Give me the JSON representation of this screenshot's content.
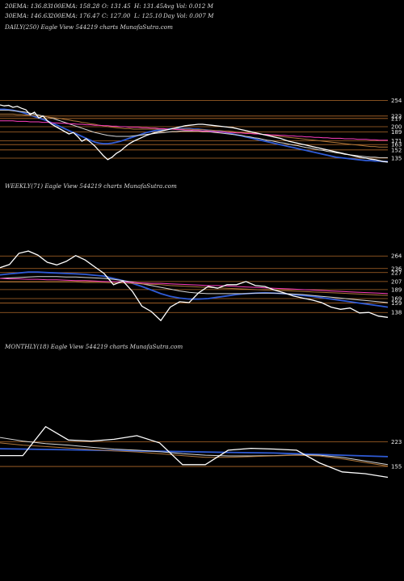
{
  "header": {
    "row1": [
      "20EMA: 136.83",
      "100EMA: 158.28",
      "O: 131.45",
      "H: 131.45",
      "Avg Vol: 0.012  M"
    ],
    "row2": [
      "30EMA: 146.63",
      "200EMA: 176.47",
      "C: 127.00",
      "L: 125.10",
      "Day Vol: 0.007 M"
    ]
  },
  "chart_data": [
    {
      "type": "line",
      "title": "DAILY(250) Eagle  View  544219 charts MunafaSutra.com",
      "y_ticks": [
        "254",
        "222",
        "217",
        "200",
        "189",
        "171",
        "163",
        "152",
        "135"
      ],
      "ylim": [
        115,
        265
      ],
      "price": [
        245,
        243,
        244,
        240,
        242,
        238,
        235,
        225,
        230,
        218,
        222,
        212,
        205,
        200,
        195,
        190,
        185,
        188,
        180,
        170,
        175,
        168,
        160,
        150,
        140,
        132,
        137,
        145,
        150,
        158,
        165,
        170,
        174,
        178,
        182,
        185,
        188,
        190,
        192,
        194,
        196,
        198,
        200,
        202,
        203,
        204,
        205,
        205,
        204,
        203,
        202,
        201,
        200,
        199,
        198,
        196,
        194,
        192,
        190,
        188,
        186,
        184,
        182,
        180,
        178,
        176,
        173,
        170,
        168,
        166,
        164,
        162,
        160,
        158,
        156,
        154,
        152,
        150,
        148,
        146,
        144,
        142,
        140,
        138,
        136,
        135,
        133,
        132,
        130,
        128,
        127
      ],
      "series": [
        {
          "values": [
            236,
            236,
            235,
            234,
            232,
            230,
            227,
            224,
            221,
            218,
            215,
            212,
            208,
            204,
            200,
            196,
            192,
            188,
            184,
            180,
            176,
            172,
            168,
            166,
            165,
            165,
            166,
            168,
            170,
            173,
            176,
            179,
            182,
            185,
            188,
            190,
            192,
            193,
            194,
            195,
            196,
            196,
            196,
            196,
            196,
            195,
            195,
            194,
            193,
            192,
            191,
            190,
            189,
            187,
            185,
            183,
            181,
            179,
            177,
            175,
            173,
            171,
            169,
            167,
            165,
            163,
            161,
            159,
            157,
            155,
            153,
            151,
            149,
            147,
            145,
            143,
            141,
            139,
            137,
            136,
            135,
            134,
            133,
            132,
            131,
            130,
            130,
            129,
            129,
            128,
            128
          ],
          "color": "#2f5bd6"
        },
        {
          "values": [
            234,
            234,
            234,
            233,
            232,
            231,
            230,
            228,
            226,
            224,
            222,
            220,
            218,
            215,
            212,
            209,
            206,
            203,
            200,
            197,
            194,
            191,
            188,
            186,
            184,
            182,
            181,
            180,
            180,
            180,
            180,
            181,
            182,
            183,
            184,
            185,
            186,
            187,
            188,
            189,
            190,
            190,
            191,
            191,
            191,
            191,
            191,
            190,
            190,
            189,
            188,
            187,
            186,
            185,
            184,
            183,
            182,
            180,
            179,
            177,
            176,
            174,
            172,
            171,
            169,
            167,
            166,
            164,
            162,
            161,
            159,
            157,
            156,
            154,
            152,
            151,
            149,
            148,
            146,
            145,
            143,
            142,
            141,
            140,
            139,
            138,
            137,
            137,
            136,
            136,
            136
          ],
          "color": "#d8d8d8"
        },
        {
          "values": [
            226,
            226,
            226,
            226,
            225,
            225,
            224,
            224,
            223,
            222,
            221,
            220,
            219,
            218,
            217,
            215,
            214,
            212,
            211,
            209,
            208,
            206,
            205,
            203,
            202,
            200,
            199,
            198,
            197,
            196,
            196,
            195,
            195,
            195,
            195,
            195,
            195,
            195,
            195,
            195,
            195,
            195,
            195,
            195,
            195,
            194,
            194,
            194,
            193,
            193,
            192,
            192,
            191,
            191,
            190,
            189,
            188,
            188,
            187,
            186,
            185,
            184,
            183,
            182,
            181,
            180,
            179,
            178,
            177,
            176,
            175,
            174,
            173,
            172,
            171,
            170,
            169,
            168,
            167,
            166,
            165,
            164,
            163,
            162,
            161,
            160,
            159,
            159,
            158,
            158,
            158
          ],
          "color": "#b0773a"
        },
        {
          "values": [
            212,
            212,
            212,
            212,
            211,
            211,
            211,
            210,
            210,
            210,
            209,
            209,
            208,
            208,
            207,
            207,
            206,
            206,
            205,
            205,
            204,
            204,
            203,
            203,
            202,
            202,
            201,
            201,
            200,
            200,
            199,
            199,
            199,
            198,
            198,
            197,
            197,
            196,
            196,
            195,
            195,
            194,
            194,
            193,
            193,
            192,
            192,
            191,
            191,
            190,
            190,
            189,
            189,
            188,
            188,
            187,
            187,
            186,
            186,
            185,
            185,
            184,
            184,
            183,
            183,
            182,
            182,
            181,
            181,
            180,
            180,
            179,
            179,
            178,
            178,
            177,
            177,
            176,
            176,
            176,
            175,
            175,
            175,
            174,
            174,
            174,
            173,
            173,
            172,
            172,
            172
          ],
          "color": "#ff3fbf"
        }
      ]
    },
    {
      "type": "line",
      "title": "WEEKLY(71) Eagle  View  544219 charts MunafaSutra.com",
      "y_ticks": [
        "264",
        "236",
        "227",
        "207",
        "189",
        "169",
        "159",
        "138"
      ],
      "ylim": [
        115,
        295
      ],
      "price": [
        238,
        245,
        270,
        275,
        266,
        250,
        244,
        252,
        265,
        255,
        240,
        225,
        200,
        208,
        185,
        152,
        140,
        120,
        150,
        162,
        160,
        182,
        196,
        192,
        200,
        200,
        207,
        198,
        196,
        188,
        182,
        175,
        170,
        166,
        160,
        150,
        145,
        148,
        137,
        138,
        130,
        127
      ],
      "series": [
        {
          "values": [
            222,
            224,
            226,
            228,
            228,
            227,
            226,
            225,
            224,
            223,
            221,
            219,
            214,
            209,
            203,
            196,
            188,
            180,
            174,
            170,
            168,
            168,
            169,
            172,
            175,
            178,
            180,
            181,
            182,
            181,
            180,
            178,
            176,
            174,
            171,
            168,
            165,
            162,
            159,
            156,
            153,
            150
          ],
          "color": "#2f5bd6"
        },
        {
          "values": [
            214,
            215,
            216,
            217,
            218,
            218,
            218,
            217,
            217,
            216,
            215,
            214,
            212,
            209,
            206,
            202,
            198,
            194,
            190,
            186,
            183,
            181,
            180,
            180,
            180,
            180,
            180,
            181,
            181,
            181,
            180,
            179,
            178,
            176,
            174,
            172,
            170,
            168,
            166,
            164,
            162,
            160
          ],
          "color": "#d8d8d8"
        },
        {
          "values": [
            206,
            206,
            206,
            206,
            206,
            206,
            206,
            206,
            206,
            205,
            205,
            205,
            204,
            204,
            203,
            202,
            201,
            200,
            198,
            197,
            196,
            195,
            194,
            193,
            192,
            191,
            190,
            189,
            188,
            188,
            187,
            186,
            185,
            184,
            183,
            182,
            181,
            180,
            179,
            178,
            177,
            176
          ],
          "color": "#b0773a"
        },
        {
          "values": [
            214,
            213,
            213,
            212,
            212,
            211,
            211,
            210,
            209,
            209,
            208,
            207,
            207,
            206,
            205,
            204,
            203,
            203,
            202,
            201,
            200,
            199,
            198,
            198,
            197,
            196,
            195,
            194,
            193,
            192,
            191,
            190,
            189,
            188,
            187,
            186,
            185,
            184,
            183,
            182,
            181,
            180
          ],
          "color": "#ff3fbf"
        }
      ]
    },
    {
      "type": "line",
      "title": "MONTHLY(18) Eagle  View  544219 charts MunafaSutra.com",
      "y_ticks": [
        "223",
        "155"
      ],
      "ylim": [
        95,
        340
      ],
      "price": [
        185,
        185,
        265,
        228,
        225,
        230,
        240,
        220,
        160,
        160,
        200,
        205,
        203,
        200,
        165,
        140,
        135,
        125
      ],
      "series": [
        {
          "values": [
            204,
            203,
            202,
            201,
            200,
            199,
            198,
            197,
            196,
            195,
            194,
            193,
            192,
            190,
            188,
            186,
            184,
            182
          ],
          "color": "#2f5bd6"
        },
        {
          "values": [
            235,
            225,
            218,
            214,
            208,
            203,
            200,
            196,
            190,
            186,
            184,
            184,
            185,
            187,
            186,
            180,
            170,
            160
          ],
          "color": "#d8d8d8"
        },
        {
          "values": [
            220,
            214,
            210,
            206,
            202,
            198,
            195,
            190,
            185,
            180,
            180,
            182,
            184,
            186,
            184,
            176,
            166,
            156
          ],
          "color": "#b0773a"
        }
      ]
    }
  ]
}
